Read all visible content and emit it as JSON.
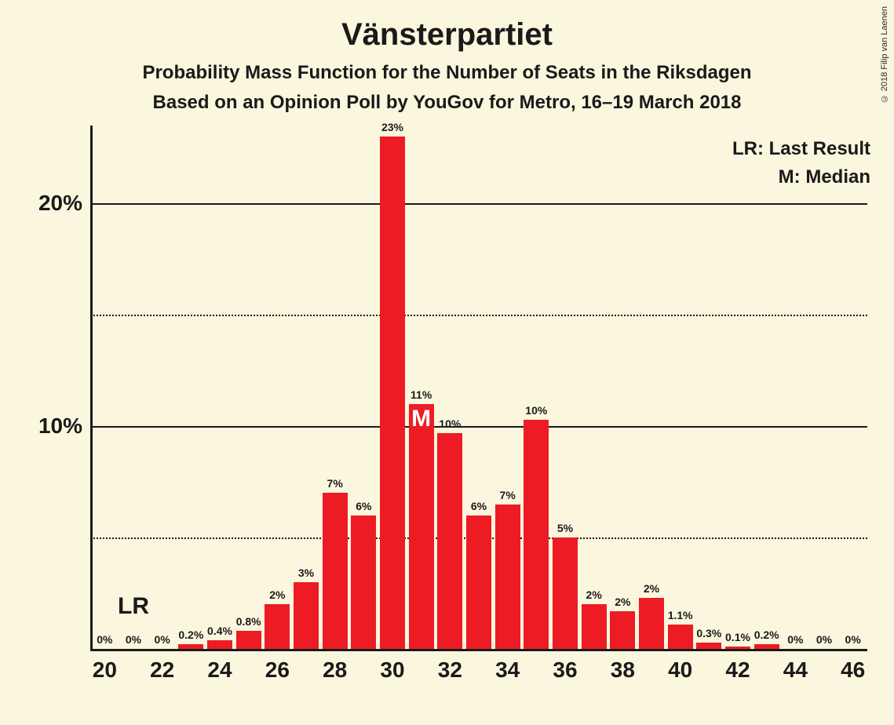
{
  "copyright": "© 2018 Filip van Laenen",
  "title": "Vänsterpartiet",
  "subtitle": "Probability Mass Function for the Number of Seats in the Riksdagen",
  "subnote": "Based on an Opinion Poll by YouGov for Metro, 16–19 March 2018",
  "legend": {
    "lr": "LR: Last Result",
    "m": "M: Median"
  },
  "chart": {
    "type": "bar",
    "bar_color": "#ed1b24",
    "background_color": "#fbf6de",
    "text_color": "#1a1a1a",
    "y_axis": {
      "max_percent": 23.5,
      "major_ticks": [
        10,
        20
      ],
      "minor_ticks": [
        5,
        15
      ],
      "label_suffix": "%"
    },
    "x_axis": {
      "min": 20,
      "max": 46,
      "tick_labels": [
        20,
        22,
        24,
        26,
        28,
        30,
        32,
        34,
        36,
        38,
        40,
        42,
        44,
        46
      ]
    },
    "lr_marker": {
      "x": 21,
      "label": "LR"
    },
    "median_marker": {
      "x": 31,
      "label": "M"
    },
    "bar_width_ratio": 0.88,
    "bars": [
      {
        "x": 20,
        "v": 0,
        "label": "0%"
      },
      {
        "x": 21,
        "v": 0,
        "label": "0%"
      },
      {
        "x": 22,
        "v": 0,
        "label": "0%"
      },
      {
        "x": 23,
        "v": 0.2,
        "label": "0.2%"
      },
      {
        "x": 24,
        "v": 0.4,
        "label": "0.4%"
      },
      {
        "x": 25,
        "v": 0.8,
        "label": "0.8%"
      },
      {
        "x": 26,
        "v": 2,
        "label": "2%"
      },
      {
        "x": 27,
        "v": 3,
        "label": "3%"
      },
      {
        "x": 28,
        "v": 7,
        "label": "7%"
      },
      {
        "x": 29,
        "v": 6,
        "label": "6%"
      },
      {
        "x": 30,
        "v": 23,
        "label": "23%"
      },
      {
        "x": 31,
        "v": 11,
        "label": "11%"
      },
      {
        "x": 32,
        "v": 9.7,
        "label": "10%"
      },
      {
        "x": 33,
        "v": 6,
        "label": "6%"
      },
      {
        "x": 34,
        "v": 6.5,
        "label": "7%"
      },
      {
        "x": 35,
        "v": 10.3,
        "label": "10%"
      },
      {
        "x": 36,
        "v": 5,
        "label": "5%"
      },
      {
        "x": 37,
        "v": 2,
        "label": "2%"
      },
      {
        "x": 38,
        "v": 1.7,
        "label": "2%"
      },
      {
        "x": 39,
        "v": 2.3,
        "label": "2%"
      },
      {
        "x": 40,
        "v": 1.1,
        "label": "1.1%"
      },
      {
        "x": 41,
        "v": 0.3,
        "label": "0.3%"
      },
      {
        "x": 42,
        "v": 0.1,
        "label": "0.1%"
      },
      {
        "x": 43,
        "v": 0.2,
        "label": "0.2%"
      },
      {
        "x": 44,
        "v": 0,
        "label": "0%"
      },
      {
        "x": 45,
        "v": 0,
        "label": "0%"
      },
      {
        "x": 46,
        "v": 0,
        "label": "0%"
      }
    ]
  }
}
